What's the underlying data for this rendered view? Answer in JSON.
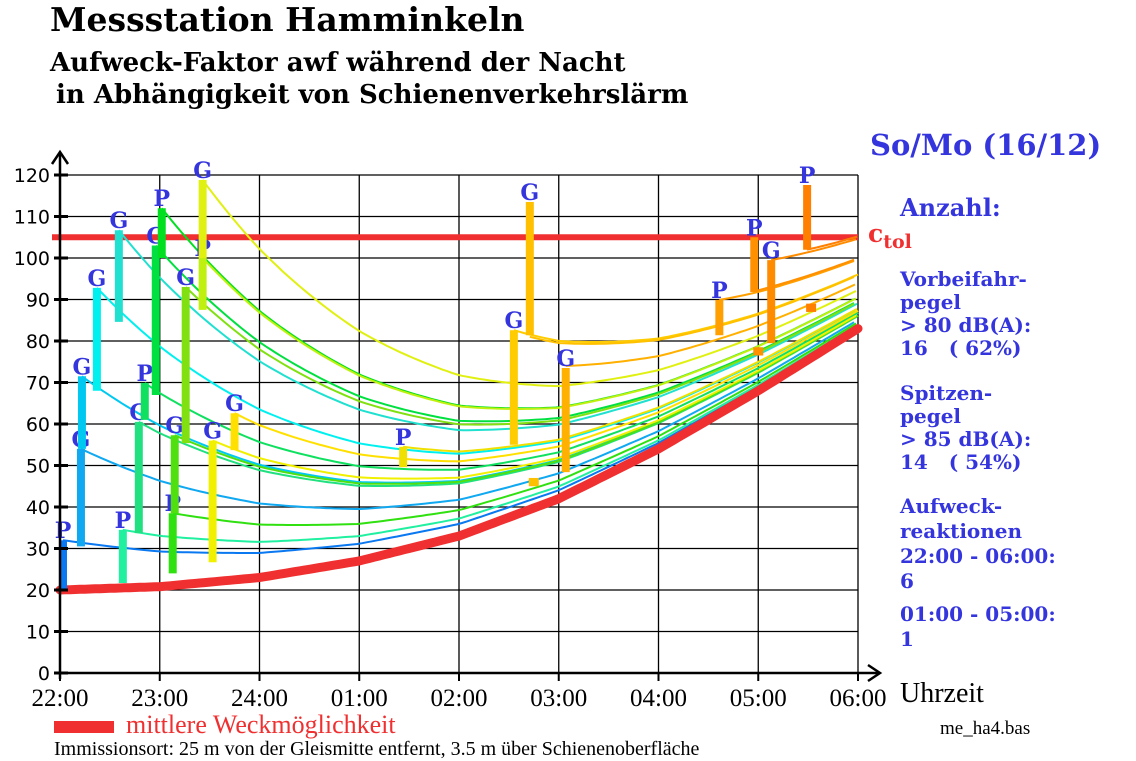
{
  "header": {
    "title": "Messstation Hamminkeln",
    "subtitle_line1": "Aufweck-Faktor awf  während der Nacht",
    "subtitle_line2": "in Abhängigkeit von Schienenverkehrslärm",
    "night": "So/Mo (16/12)"
  },
  "side_panel": {
    "anzahl": "Anzahl:",
    "ctol_c": "c",
    "ctol_sub": "tol",
    "vorbei_1": "Vorbeifahr-",
    "vorbei_2": "pegel",
    "vorbei_3": "> 80 dB(A):",
    "vorbei_4": "16   ( 62%)",
    "spitzen_1": "Spitzen-",
    "spitzen_2": "pegel",
    "spitzen_3": "> 85 dB(A):",
    "spitzen_4": "14   ( 54%)",
    "aufweck_1": "Aufweck-",
    "aufweck_2": "reaktionen",
    "aufweck_3": "22:00 - 06:00:",
    "aufweck_4": "6",
    "aufweck_5": "01:00 - 05:00:",
    "aufweck_6": "1"
  },
  "footer": {
    "legend": "mittlere Weckmöglichkeit",
    "file": "me_ha4.bas",
    "note": "Immissionsort: 25 m von der Gleismitte entfernt, 3.5 m über Schienenoberfläche"
  },
  "colors": {
    "base": "#f03030",
    "ctol": "#f03030",
    "label": "#3535dd"
  },
  "chart_data": {
    "type": "line",
    "xlabel": "Uhrzeit",
    "ylabel": "",
    "x_ticks": [
      "22:00",
      "23:00",
      "24:00",
      "01:00",
      "02:00",
      "03:00",
      "04:00",
      "05:00",
      "06:00"
    ],
    "y_ticks": [
      "0",
      "10",
      "20",
      "30",
      "40",
      "50",
      "60",
      "70",
      "80",
      "90",
      "100",
      "110",
      "120"
    ],
    "xlim_hours": [
      0,
      8
    ],
    "ylim": [
      0,
      120
    ],
    "grid": true,
    "ctol": 105,
    "decay_tau_hours": 2.8,
    "base_curve": {
      "name": "mittlere Weckmöglichkeit",
      "hours": [
        0,
        1,
        2,
        3,
        4,
        5,
        6,
        7,
        8
      ],
      "values": [
        20,
        20.8,
        23,
        27,
        33,
        42,
        54,
        68,
        83
      ]
    },
    "events": [
      {
        "label": "P",
        "t": 0.03,
        "lo": 20,
        "hi": 32,
        "color": "#0a78f0"
      },
      {
        "label": "G",
        "t": 0.21,
        "lo": 30.5,
        "hi": 54,
        "color": "#10a8f0"
      },
      {
        "label": "G",
        "t": 0.22,
        "lo": 54,
        "hi": 71.5,
        "color": "#00c8f0"
      },
      {
        "label": "G",
        "t": 0.37,
        "lo": 68,
        "hi": 92.8,
        "color": "#00f0f0"
      },
      {
        "label": "G",
        "t": 0.59,
        "lo": 84.6,
        "hi": 106.7,
        "color": "#20e0d0"
      },
      {
        "label": "P",
        "t": 0.63,
        "lo": 21.7,
        "hi": 34.5,
        "color": "#20f0a0"
      },
      {
        "label": "G",
        "t": 0.79,
        "lo": 33.7,
        "hi": 60.5,
        "color": "#20e080"
      },
      {
        "label": "P",
        "t": 0.85,
        "lo": 61,
        "hi": 69.9,
        "color": "#10e060"
      },
      {
        "label": "G",
        "t": 0.96,
        "lo": 67,
        "hi": 103,
        "color": "#00e040"
      },
      {
        "label": "P",
        "t": 1.02,
        "lo": 100,
        "hi": 112,
        "color": "#00e020"
      },
      {
        "label": "P",
        "t": 1.13,
        "lo": 24,
        "hi": 38.5,
        "color": "#30e010"
      },
      {
        "label": "G",
        "t": 1.15,
        "lo": 38.5,
        "hi": 57.3,
        "color": "#50e010"
      },
      {
        "label": "G",
        "t": 1.26,
        "lo": 55.4,
        "hi": 93,
        "color": "#80e010"
      },
      {
        "label": "P",
        "t": 1.43,
        "lo": 87.5,
        "hi": 100,
        "color": "#c0f010"
      },
      {
        "label": "G",
        "t": 1.43,
        "lo": 100,
        "hi": 118.8,
        "color": "#e0f010"
      },
      {
        "label": "G",
        "t": 1.53,
        "lo": 26.7,
        "hi": 56,
        "color": "#f0f000"
      },
      {
        "label": "G",
        "t": 1.75,
        "lo": 53.7,
        "hi": 62.6,
        "color": "#ffe000"
      },
      {
        "label": "P",
        "t": 3.44,
        "lo": 49.6,
        "hi": 54.5,
        "color": "#f0e000"
      },
      {
        "label": "G",
        "t": 4.55,
        "lo": 55,
        "hi": 82.6,
        "color": "#ffcc00"
      },
      {
        "label": "G",
        "t": 4.71,
        "lo": 81.4,
        "hi": 113.5,
        "color": "#ffc000",
        "curve_from": 81
      },
      {
        "label": "",
        "t": 4.75,
        "lo": 45,
        "hi": 47,
        "color": "#ffc000"
      },
      {
        "label": "G",
        "t": 5.07,
        "lo": 48.4,
        "hi": 73.5,
        "color": "#ffb000",
        "curve_from": 74
      },
      {
        "label": "P",
        "t": 6.61,
        "lo": 81.4,
        "hi": 89.9,
        "color": "#ffa000"
      },
      {
        "label": "P",
        "t": 6.96,
        "lo": 91.8,
        "hi": 105,
        "color": "#ff9000",
        "curve_from": 92
      },
      {
        "label": "",
        "t": 7.0,
        "lo": 76.5,
        "hi": 78.5,
        "color": "#ff9000"
      },
      {
        "label": "G",
        "t": 7.13,
        "lo": 79.5,
        "hi": 99.5,
        "color": "#ff8c00"
      },
      {
        "label": "",
        "t": 7.53,
        "lo": 87,
        "hi": 89,
        "color": "#ff8000"
      },
      {
        "label": "P",
        "t": 7.49,
        "lo": 102,
        "hi": 117.6,
        "color": "#ff8000",
        "curve_from": 102
      }
    ]
  }
}
